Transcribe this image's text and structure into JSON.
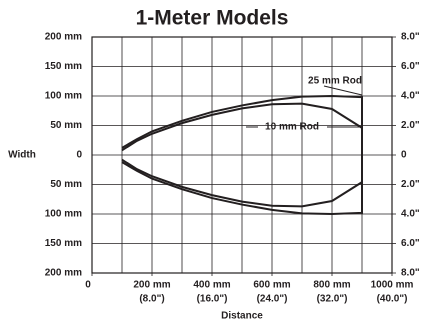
{
  "chart_data": {
    "type": "line",
    "title": "1-Meter Models",
    "x_label": "Distance",
    "y_label": "Width",
    "xlim": [
      0,
      1000
    ],
    "ylim": [
      -200,
      200
    ],
    "y2lim": [
      -8,
      8
    ],
    "xgrid": [
      0,
      100,
      200,
      300,
      400,
      500,
      600,
      700,
      800,
      900,
      1000
    ],
    "xticks": [
      {
        "value": 0,
        "label": "0"
      },
      {
        "value": 200,
        "label": "200 mm",
        "sublabel": "(8.0\")"
      },
      {
        "value": 400,
        "label": "400 mm",
        "sublabel": "(16.0\")"
      },
      {
        "value": 600,
        "label": "600 mm",
        "sublabel": "(24.0\")"
      },
      {
        "value": 800,
        "label": "800 mm",
        "sublabel": "(32.0\")"
      },
      {
        "value": 1000,
        "label": "1000 mm",
        "sublabel": "(40.0\")"
      }
    ],
    "yticks": [
      {
        "value": 200,
        "label": "200 mm"
      },
      {
        "value": 150,
        "label": "150 mm"
      },
      {
        "value": 100,
        "label": "100 mm"
      },
      {
        "value": 50,
        "label": "50 mm"
      },
      0,
      {
        "value": -50,
        "label": "50 mm"
      },
      {
        "value": -100,
        "label": "100 mm"
      },
      {
        "value": -150,
        "label": "150 mm"
      },
      {
        "value": -200,
        "label": "200 mm"
      }
    ],
    "y2ticks": [
      {
        "value": 8,
        "label": "8.0\""
      },
      {
        "value": 6,
        "label": "6.0\""
      },
      {
        "value": 4,
        "label": "4.0\""
      },
      {
        "value": 2,
        "label": "2.0\""
      },
      0,
      {
        "value": -2,
        "label": "2.0\""
      },
      {
        "value": -4,
        "label": "4.0\""
      },
      {
        "value": -6,
        "label": "6.0\""
      },
      {
        "value": -8,
        "label": "8.0\""
      }
    ],
    "grid": true,
    "series": [
      {
        "name": "25 mm Rod",
        "color": "#231f20",
        "x": [
          100,
          150,
          200,
          300,
          400,
          500,
          600,
          700,
          800,
          900,
          900,
          800,
          700,
          600,
          500,
          400,
          300,
          200,
          150,
          100
        ],
        "values": [
          12,
          27,
          40,
          58,
          73,
          84,
          93,
          99,
          100,
          98,
          -98,
          -100,
          -99,
          -93,
          -84,
          -73,
          -58,
          -40,
          -27,
          -12
        ]
      },
      {
        "name": "10 mm Rod",
        "color": "#231f20",
        "x": [
          100,
          150,
          200,
          300,
          400,
          500,
          600,
          700,
          800,
          900,
          900,
          800,
          700,
          600,
          500,
          400,
          300,
          200,
          150,
          100
        ],
        "values": [
          8,
          24,
          36,
          54,
          68,
          79,
          86,
          87,
          78,
          46,
          -46,
          -78,
          -87,
          -86,
          -79,
          -68,
          -54,
          -36,
          -24,
          -8
        ]
      }
    ]
  }
}
